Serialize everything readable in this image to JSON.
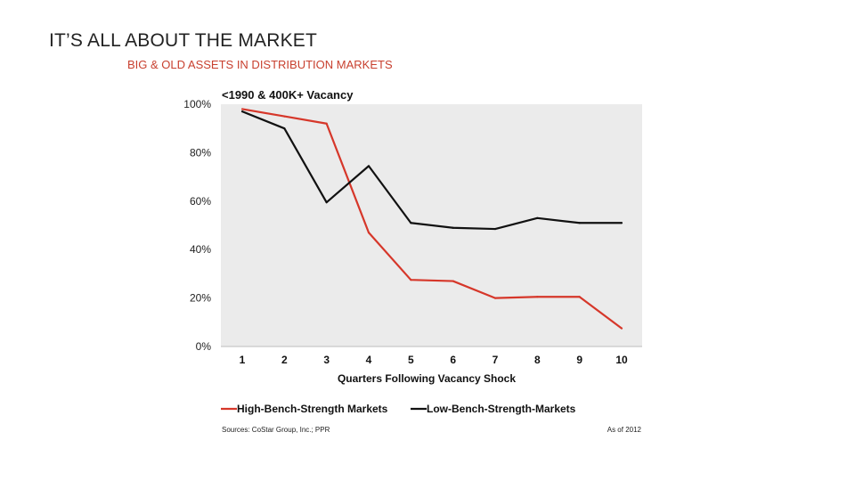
{
  "slide": {
    "title": "IT’S ALL ABOUT THE MARKET",
    "subtitle": "BIG & OLD ASSETS IN DISTRIBUTION MARKETS"
  },
  "chart_data": {
    "type": "line",
    "title": "<1990 & 400K+ Vacancy",
    "xlabel": "Quarters Following Vacancy Shock",
    "ylabel": "",
    "x": [
      1,
      2,
      3,
      4,
      5,
      6,
      7,
      8,
      9,
      10
    ],
    "ylim": [
      0,
      100
    ],
    "yticks": [
      0,
      20,
      40,
      60,
      80,
      100
    ],
    "ytick_labels": [
      "0%",
      "20%",
      "40%",
      "60%",
      "80%",
      "100%"
    ],
    "grid": false,
    "legend_position": "bottom",
    "series": [
      {
        "name": "High-Bench-Strength Markets",
        "color": "#d6372a",
        "values": [
          98,
          95,
          92,
          47,
          27.5,
          27,
          20,
          20.5,
          20.5,
          7.5
        ]
      },
      {
        "name": "Low-Bench-Strength-Markets",
        "color": "#111111",
        "values": [
          97,
          90,
          59.5,
          74.5,
          51,
          49,
          48.5,
          53,
          51,
          51
        ]
      }
    ],
    "plot_background": "#ebebeb",
    "source": "Sources: CoStar Group, Inc.; PPR",
    "as_of": "As of 2012"
  }
}
